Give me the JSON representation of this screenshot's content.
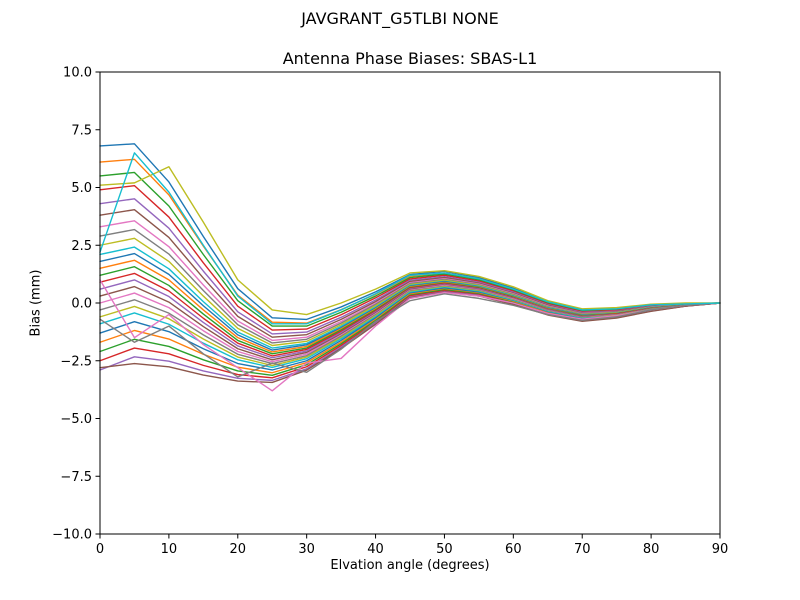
{
  "chart_data": {
    "type": "line",
    "suptitle": "JAVGRANT_G5TLBI NONE",
    "title": "Antenna Phase Biases: SBAS-L1",
    "xlabel": "Elvation angle (degrees)",
    "ylabel": "Bias (mm)",
    "xlim": [
      0,
      90
    ],
    "ylim": [
      -10.0,
      10.0
    ],
    "grid": false,
    "legend": "none",
    "x_ticks": [
      0,
      10,
      20,
      30,
      40,
      50,
      60,
      70,
      80,
      90
    ],
    "x_tick_labels": [
      "0",
      "10",
      "20",
      "30",
      "40",
      "50",
      "60",
      "70",
      "80",
      "90"
    ],
    "y_ticks": [
      -10.0,
      -7.5,
      -5.0,
      -2.5,
      0.0,
      2.5,
      5.0,
      7.5,
      10.0
    ],
    "y_tick_labels": [
      "−10.0",
      "−7.5",
      "−5.0",
      "−2.5",
      "0.0",
      "2.5",
      "5.0",
      "7.5",
      "10.0"
    ],
    "x": [
      0,
      5,
      10,
      15,
      20,
      25,
      30,
      35,
      40,
      45,
      50,
      55,
      60,
      65,
      70,
      75,
      80,
      85,
      90
    ],
    "series": [
      {
        "name": "line-01",
        "color": "#1f77b4",
        "values": [
          6.8,
          6.89,
          5.24,
          2.88,
          0.62,
          -0.64,
          -0.71,
          -0.17,
          0.48,
          1.23,
          1.37,
          1.1,
          0.64,
          0.08,
          -0.29,
          -0.25,
          -0.06,
          -0.04,
          0.0
        ]
      },
      {
        "name": "line-02",
        "color": "#ff7f0e",
        "values": [
          6.1,
          6.22,
          4.68,
          2.46,
          0.34,
          -0.83,
          -0.87,
          -0.29,
          0.38,
          1.16,
          1.3,
          1.05,
          0.59,
          0.04,
          -0.32,
          -0.28,
          -0.08,
          -0.04,
          0.0
        ]
      },
      {
        "name": "line-03",
        "color": "#2ca02c",
        "values": [
          5.5,
          5.65,
          4.2,
          2.1,
          0.1,
          -1.0,
          -1.0,
          -0.4,
          0.3,
          1.1,
          1.25,
          1.0,
          0.55,
          0.0,
          -0.35,
          -0.3,
          -0.1,
          -0.05,
          0.0
        ]
      },
      {
        "name": "line-04",
        "color": "#d62728",
        "values": [
          4.9,
          5.08,
          3.72,
          1.74,
          -0.14,
          -1.17,
          -1.13,
          -0.51,
          0.22,
          1.04,
          1.2,
          0.95,
          0.51,
          -0.04,
          -0.38,
          -0.32,
          -0.12,
          -0.06,
          0.0
        ]
      },
      {
        "name": "line-05",
        "color": "#9467bd",
        "values": [
          4.3,
          4.51,
          3.24,
          1.38,
          -0.38,
          -1.34,
          -1.26,
          -0.62,
          0.13,
          0.98,
          1.14,
          0.9,
          0.47,
          -0.07,
          -0.41,
          -0.35,
          -0.14,
          -0.06,
          0.0
        ]
      },
      {
        "name": "line-06",
        "color": "#8c564b",
        "values": [
          3.8,
          4.04,
          2.84,
          1.08,
          -0.58,
          -1.48,
          -1.37,
          -0.71,
          0.06,
          0.93,
          1.1,
          0.86,
          0.43,
          -0.1,
          -0.44,
          -0.37,
          -0.15,
          -0.07,
          0.0
        ]
      },
      {
        "name": "line-07",
        "color": "#e377c2",
        "values": [
          3.3,
          3.56,
          2.44,
          0.78,
          -0.78,
          -1.62,
          -1.48,
          -0.8,
          -0.01,
          0.88,
          1.05,
          0.82,
          0.4,
          -0.13,
          -0.46,
          -0.39,
          -0.17,
          -0.07,
          0.0
        ]
      },
      {
        "name": "line-08",
        "color": "#7f7f7f",
        "values": [
          2.9,
          3.18,
          2.12,
          0.54,
          -0.94,
          -1.73,
          -1.57,
          -0.87,
          -0.06,
          0.84,
          1.02,
          0.79,
          0.37,
          -0.16,
          -0.48,
          -0.4,
          -0.18,
          -0.08,
          0.0
        ]
      },
      {
        "name": "line-09",
        "color": "#bcbd22",
        "values": [
          2.5,
          2.8,
          1.8,
          0.3,
          -1.1,
          -1.84,
          -1.66,
          -0.94,
          -0.12,
          0.8,
          0.98,
          0.76,
          0.34,
          -0.18,
          -0.5,
          -0.42,
          -0.19,
          -0.08,
          0.0
        ]
      },
      {
        "name": "line-10",
        "color": "#17becf",
        "values": [
          2.1,
          2.42,
          1.48,
          0.06,
          -1.26,
          -1.95,
          -1.75,
          -1.01,
          -0.18,
          0.76,
          0.94,
          0.73,
          0.31,
          -0.2,
          -0.52,
          -0.44,
          -0.2,
          -0.08,
          0.0
        ]
      },
      {
        "name": "line-11",
        "color": "#1f77b4",
        "values": [
          1.8,
          2.14,
          1.24,
          -0.12,
          -1.38,
          -2.04,
          -1.81,
          -1.07,
          -0.22,
          0.73,
          0.92,
          0.7,
          0.29,
          -0.22,
          -0.53,
          -0.45,
          -0.21,
          -0.09,
          0.0
        ]
      },
      {
        "name": "line-12",
        "color": "#ff7f0e",
        "values": [
          1.5,
          1.85,
          1.0,
          -0.3,
          -1.5,
          -2.12,
          -1.88,
          -1.12,
          -0.26,
          0.7,
          0.89,
          0.68,
          0.27,
          -0.24,
          -0.55,
          -0.46,
          -0.22,
          -0.09,
          0.0
        ]
      },
      {
        "name": "line-13",
        "color": "#2ca02c",
        "values": [
          1.2,
          1.57,
          0.76,
          -0.48,
          -1.62,
          -2.2,
          -1.95,
          -1.17,
          -0.3,
          0.67,
          0.86,
          0.66,
          0.25,
          -0.26,
          -0.56,
          -0.47,
          -0.23,
          -0.09,
          0.0
        ]
      },
      {
        "name": "line-14",
        "color": "#d62728",
        "values": [
          0.9,
          1.28,
          0.52,
          -0.66,
          -1.74,
          -2.29,
          -2.01,
          -1.23,
          -0.34,
          0.64,
          0.84,
          0.63,
          0.23,
          -0.28,
          -0.58,
          -0.48,
          -0.24,
          -0.1,
          0.0
        ]
      },
      {
        "name": "line-15",
        "color": "#9467bd",
        "values": [
          0.6,
          1.0,
          0.28,
          -0.84,
          -1.86,
          -2.37,
          -2.08,
          -1.28,
          -0.39,
          0.61,
          0.81,
          0.61,
          0.21,
          -0.29,
          -0.59,
          -0.5,
          -0.25,
          -0.1,
          0.0
        ]
      },
      {
        "name": "line-16",
        "color": "#8c564b",
        "values": [
          0.3,
          0.71,
          0.04,
          -1.02,
          -1.98,
          -2.46,
          -2.14,
          -1.34,
          -0.43,
          0.58,
          0.78,
          0.58,
          0.19,
          -0.31,
          -0.61,
          -0.51,
          -0.26,
          -0.1,
          0.0
        ]
      },
      {
        "name": "line-17",
        "color": "#e377c2",
        "values": [
          0.0,
          0.43,
          -0.2,
          -1.2,
          -2.1,
          -2.54,
          -2.21,
          -1.39,
          -0.47,
          0.55,
          0.76,
          0.56,
          0.17,
          -0.33,
          -0.63,
          -0.52,
          -0.27,
          -0.11,
          0.0
        ]
      },
      {
        "name": "line-18",
        "color": "#7f7f7f",
        "values": [
          -0.3,
          0.14,
          -0.44,
          -1.38,
          -2.22,
          -2.62,
          -2.28,
          -1.44,
          -0.51,
          0.52,
          0.73,
          0.54,
          0.14,
          -0.35,
          -0.64,
          -0.53,
          -0.27,
          -0.11,
          0.0
        ]
      },
      {
        "name": "line-19",
        "color": "#bcbd22",
        "values": [
          -0.6,
          -0.15,
          -0.68,
          -1.56,
          -2.34,
          -2.71,
          -2.34,
          -1.5,
          -0.55,
          0.49,
          0.7,
          0.51,
          0.12,
          -0.37,
          -0.66,
          -0.54,
          -0.28,
          -0.11,
          0.0
        ]
      },
      {
        "name": "line-20",
        "color": "#17becf",
        "values": [
          -0.9,
          -0.43,
          -0.92,
          -1.74,
          -2.46,
          -2.79,
          -2.41,
          -1.55,
          -0.6,
          0.46,
          0.67,
          0.49,
          0.1,
          -0.38,
          -0.67,
          -0.56,
          -0.29,
          -0.11,
          0.0
        ]
      },
      {
        "name": "line-21",
        "color": "#1f77b4",
        "values": [
          -1.3,
          -0.81,
          -1.24,
          -1.98,
          -2.62,
          -2.9,
          -2.5,
          -1.62,
          -0.65,
          0.42,
          0.64,
          0.46,
          0.07,
          -0.41,
          -0.69,
          -0.57,
          -0.3,
          -0.12,
          0.0
        ]
      },
      {
        "name": "line-22",
        "color": "#ff7f0e",
        "values": [
          -1.7,
          -1.19,
          -1.56,
          -2.22,
          -2.78,
          -3.02,
          -2.58,
          -1.7,
          -0.71,
          0.38,
          0.6,
          0.42,
          0.05,
          -0.43,
          -0.71,
          -0.59,
          -0.32,
          -0.12,
          0.0
        ]
      },
      {
        "name": "line-23",
        "color": "#2ca02c",
        "values": [
          -2.1,
          -1.57,
          -1.88,
          -2.46,
          -2.94,
          -3.13,
          -2.67,
          -1.77,
          -0.76,
          0.34,
          0.57,
          0.39,
          0.02,
          -0.46,
          -0.73,
          -0.6,
          -0.33,
          -0.13,
          0.0
        ]
      },
      {
        "name": "line-24",
        "color": "#d62728",
        "values": [
          -2.5,
          -1.95,
          -2.2,
          -2.7,
          -3.1,
          -3.24,
          -2.76,
          -1.84,
          -0.82,
          0.3,
          0.53,
          0.36,
          -0.01,
          -0.48,
          -0.75,
          -0.62,
          -0.34,
          -0.13,
          0.0
        ]
      },
      {
        "name": "line-25",
        "color": "#9467bd",
        "values": [
          -2.9,
          -2.33,
          -2.52,
          -2.94,
          -3.26,
          -3.35,
          -2.85,
          -1.91,
          -0.88,
          0.26,
          0.49,
          0.33,
          -0.04,
          -0.5,
          -0.77,
          -0.64,
          -0.35,
          -0.13,
          0.0
        ]
      },
      {
        "name": "line-26",
        "color": "#8c564b",
        "values": [
          -2.8,
          -2.62,
          -2.76,
          -3.12,
          -3.38,
          -3.44,
          -2.91,
          -1.97,
          -0.92,
          0.23,
          0.47,
          0.3,
          -0.06,
          -0.52,
          -0.79,
          -0.65,
          -0.36,
          -0.14,
          0.0
        ]
      },
      {
        "name": "line-27",
        "color": "#e377c2",
        "values": [
          1.0,
          -1.5,
          -0.5,
          -1.8,
          -2.8,
          -3.8,
          -2.6,
          -2.4,
          -1.0,
          0.2,
          0.45,
          0.3,
          0.0,
          -0.45,
          -0.7,
          -0.55,
          -0.3,
          -0.1,
          0.0
        ]
      },
      {
        "name": "line-28",
        "color": "#7f7f7f",
        "values": [
          -0.7,
          -1.7,
          -1.0,
          -2.2,
          -3.2,
          -2.6,
          -3.0,
          -2.0,
          -0.8,
          0.1,
          0.4,
          0.2,
          -0.1,
          -0.5,
          -0.75,
          -0.6,
          -0.3,
          -0.1,
          0.0
        ]
      },
      {
        "name": "line-29",
        "color": "#bcbd22",
        "values": [
          5.1,
          5.2,
          5.9,
          3.5,
          1.0,
          -0.3,
          -0.5,
          0.0,
          0.6,
          1.3,
          1.4,
          1.15,
          0.7,
          0.1,
          -0.25,
          -0.2,
          -0.05,
          0.0,
          0.0
        ]
      },
      {
        "name": "line-30",
        "color": "#17becf",
        "values": [
          2.2,
          6.5,
          4.8,
          2.5,
          0.3,
          -0.9,
          -0.9,
          -0.3,
          0.4,
          1.2,
          1.3,
          1.05,
          0.6,
          0.05,
          -0.3,
          -0.25,
          -0.08,
          -0.04,
          0.0
        ]
      }
    ]
  }
}
